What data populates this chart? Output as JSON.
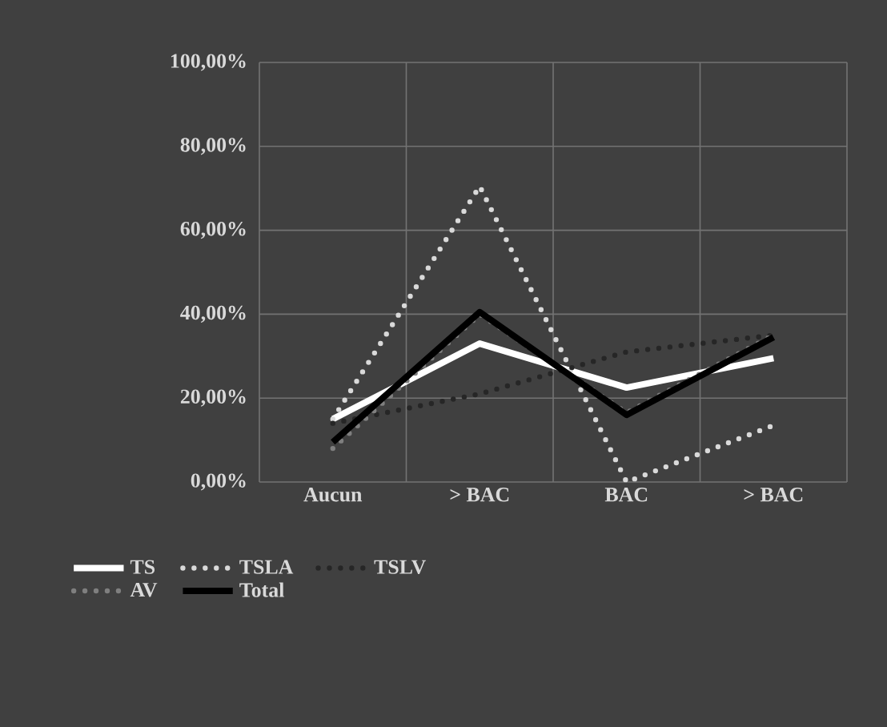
{
  "chart_data": {
    "type": "line",
    "categories": [
      "Aucun",
      "> BAC",
      "BAC",
      "> BAC"
    ],
    "series": [
      {
        "name": "TS",
        "color": "#ffffff",
        "line_style": "solid",
        "values": [
          15,
          33,
          22.5,
          29.5
        ]
      },
      {
        "name": "TSLA",
        "color": "#d9d9d9",
        "line_style": "dotted",
        "values": [
          15,
          70.5,
          0,
          13.5
        ]
      },
      {
        "name": "TSLV",
        "color": "#262626",
        "line_style": "dotted",
        "values": [
          14,
          21,
          31,
          35
        ]
      },
      {
        "name": "AV",
        "color": "#7f7f7f",
        "line_style": "dotted",
        "values": [
          8,
          40,
          16.5,
          35
        ]
      },
      {
        "name": "Total",
        "color": "#000000",
        "line_style": "solid",
        "values": [
          9.5,
          40.5,
          16,
          34.5
        ]
      }
    ],
    "ylim": [
      0,
      100
    ],
    "yticks": [
      {
        "value": 0,
        "label": "0,00%"
      },
      {
        "value": 20,
        "label": "20,00%"
      },
      {
        "value": 40,
        "label": "40,00%"
      },
      {
        "value": 60,
        "label": "60,00%"
      },
      {
        "value": 80,
        "label": "80,00%"
      },
      {
        "value": 100,
        "label": "100,00%"
      }
    ],
    "grid": true,
    "legend": "bottom",
    "marker": "none"
  }
}
